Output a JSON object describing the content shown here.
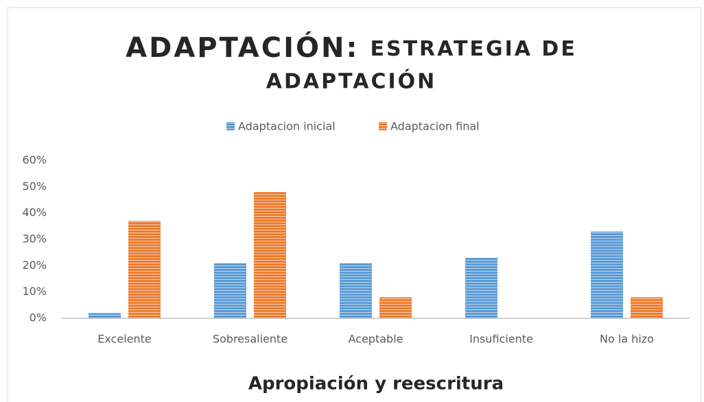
{
  "chart_data": {
    "type": "bar",
    "title": [
      "ADAPTACIÓN:",
      "ESTRATEGIA DE",
      "ADAPTACIÓN"
    ],
    "x_label": "Apropiación y reescritura",
    "categories": [
      "Excelente",
      "Sobresaliente",
      "Aceptable",
      "Insuficiente",
      "No la hizo"
    ],
    "series": [
      {
        "name": "Adaptacion inicial",
        "color": "#5b9bd5",
        "values": [
          2,
          21,
          21,
          23,
          33
        ]
      },
      {
        "name": "Adaptacion final",
        "color": "#ed7d31",
        "values": [
          37,
          48,
          8,
          0,
          8
        ]
      }
    ],
    "ylim": [
      0,
      60
    ],
    "yticks": [
      {
        "value": 0,
        "label": "0%"
      },
      {
        "value": 10,
        "label": "10%"
      },
      {
        "value": 20,
        "label": "20%"
      },
      {
        "value": 30,
        "label": "30%"
      },
      {
        "value": 40,
        "label": "40%"
      },
      {
        "value": 50,
        "label": "50%"
      },
      {
        "value": 60,
        "label": "60%"
      }
    ],
    "grid": false,
    "legend": "top"
  }
}
